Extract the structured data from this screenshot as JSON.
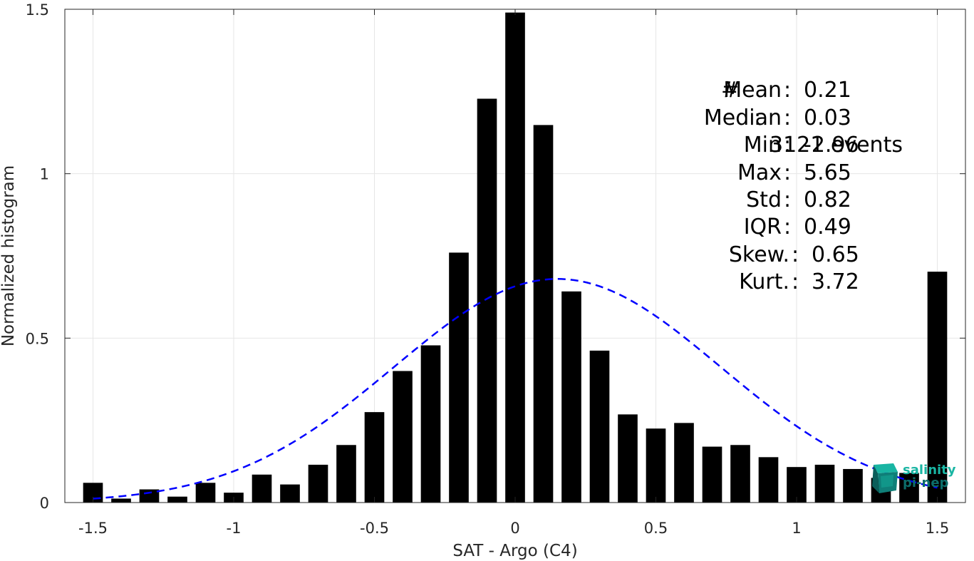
{
  "chart_data": {
    "type": "bar",
    "title": "",
    "xlabel": "SAT - Argo (C4)",
    "ylabel": "Normalized histogram",
    "xlim": [
      -1.6,
      1.6
    ],
    "ylim": [
      0,
      1.5
    ],
    "xticks": [
      -1.5,
      -1,
      -0.5,
      0,
      0.5,
      1,
      1.5
    ],
    "xtick_labels": [
      "-1.5",
      "-1",
      "-0.5",
      "0",
      "0.5",
      "1",
      "1.5"
    ],
    "yticks": [
      0,
      0.5,
      1,
      1.5
    ],
    "ytick_labels": [
      "0",
      "0.5",
      "1",
      "1.5"
    ],
    "grid": true,
    "bar_color": "#000000",
    "bin_width": 0.1,
    "x": [
      -1.5,
      -1.4,
      -1.3,
      -1.2,
      -1.1,
      -1.0,
      -0.9,
      -0.8,
      -0.7,
      -0.6,
      -0.5,
      -0.4,
      -0.3,
      -0.2,
      -0.1,
      0.0,
      0.1,
      0.2,
      0.3,
      0.4,
      0.5,
      0.6,
      0.7,
      0.8,
      0.9,
      1.0,
      1.1,
      1.2,
      1.3,
      1.4,
      1.5
    ],
    "values": [
      0.06,
      0.012,
      0.04,
      0.018,
      0.06,
      0.03,
      0.085,
      0.055,
      0.115,
      0.175,
      0.275,
      0.4,
      0.478,
      0.76,
      1.228,
      1.49,
      1.148,
      0.642,
      0.462,
      0.268,
      0.225,
      0.242,
      0.17,
      0.175,
      0.138,
      0.108,
      0.115,
      0.102,
      0.075,
      0.09,
      0.702
    ],
    "fit_curve": {
      "type": "normal",
      "mean": 0.15,
      "std": 0.58,
      "color": "#0000ff",
      "style": "dashed",
      "x_range": [
        -1.5,
        1.5
      ]
    },
    "annotations": {
      "count": {
        "label": "#",
        "sep": ":",
        "value": "3121 events"
      },
      "stats": [
        {
          "name": "Mean",
          "sep": ":",
          "value": "0.21",
          "shift": false
        },
        {
          "name": "Median",
          "sep": ":",
          "value": "0.03",
          "shift": false
        },
        {
          "name": "Min",
          "sep": ":",
          "value": "-2.96",
          "shift": false
        },
        {
          "name": "Max",
          "sep": ":",
          "value": "5.65",
          "shift": false
        },
        {
          "name": "Std",
          "sep": ":",
          "value": "0.82",
          "shift": false
        },
        {
          "name": "IQR",
          "sep": ":",
          "value": "0.49",
          "shift": false
        },
        {
          "name": "Skew.",
          "sep": ":",
          "value": "0.65",
          "shift": true
        },
        {
          "name": "Kurt.",
          "sep": ":",
          "value": "3.72",
          "shift": true
        }
      ]
    }
  },
  "logo": {
    "line1": "salinity",
    "line2": "pi-nep",
    "color_light": "#19b5a3",
    "color_dark": "#0c6d6a"
  }
}
